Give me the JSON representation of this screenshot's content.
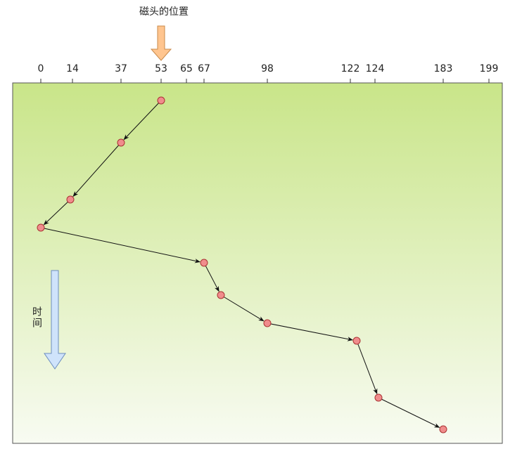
{
  "title": "磁头的位置",
  "ticks": [
    "0",
    "14",
    "37",
    "53",
    "65",
    "67",
    "98",
    "122",
    "124",
    "183",
    "199"
  ],
  "time_label": "时间"
}
